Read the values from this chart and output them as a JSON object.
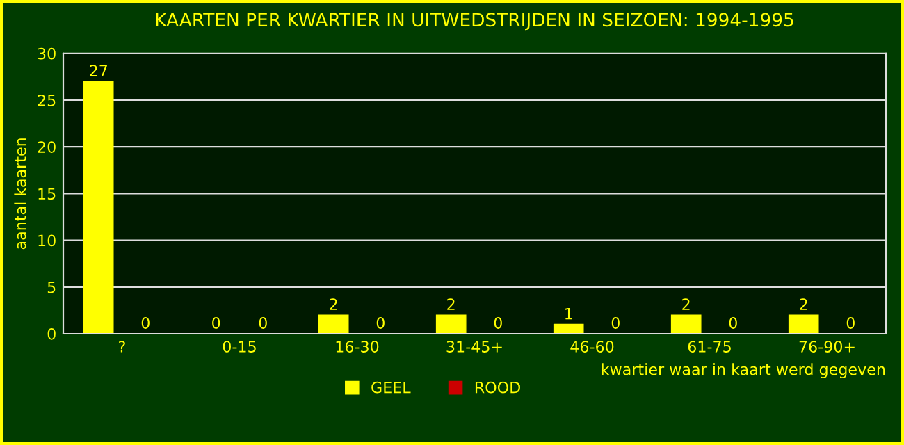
{
  "chart_data": {
    "type": "bar",
    "title": "KAARTEN PER KWARTIER IN UITWEDSTRIJDEN IN SEIZOEN: 1994-1995",
    "xlabel": "kwartier waar in kaart werd gegeven",
    "ylabel": "aantal kaarten",
    "categories": [
      "?",
      "0-15",
      "16-30",
      "31-45+",
      "46-60",
      "61-75",
      "76-90+"
    ],
    "series": [
      {
        "name": "GEEL",
        "color": "#ffff00",
        "values": [
          27,
          0,
          2,
          2,
          1,
          2,
          2
        ]
      },
      {
        "name": "ROOD",
        "color": "#cc0000",
        "values": [
          0,
          0,
          0,
          0,
          0,
          0,
          0
        ]
      }
    ],
    "ylim": [
      0,
      30
    ],
    "yticks": [
      0,
      5,
      10,
      15,
      20,
      25,
      30
    ],
    "grid": "y",
    "legend": "bottom",
    "data_labels": true
  }
}
